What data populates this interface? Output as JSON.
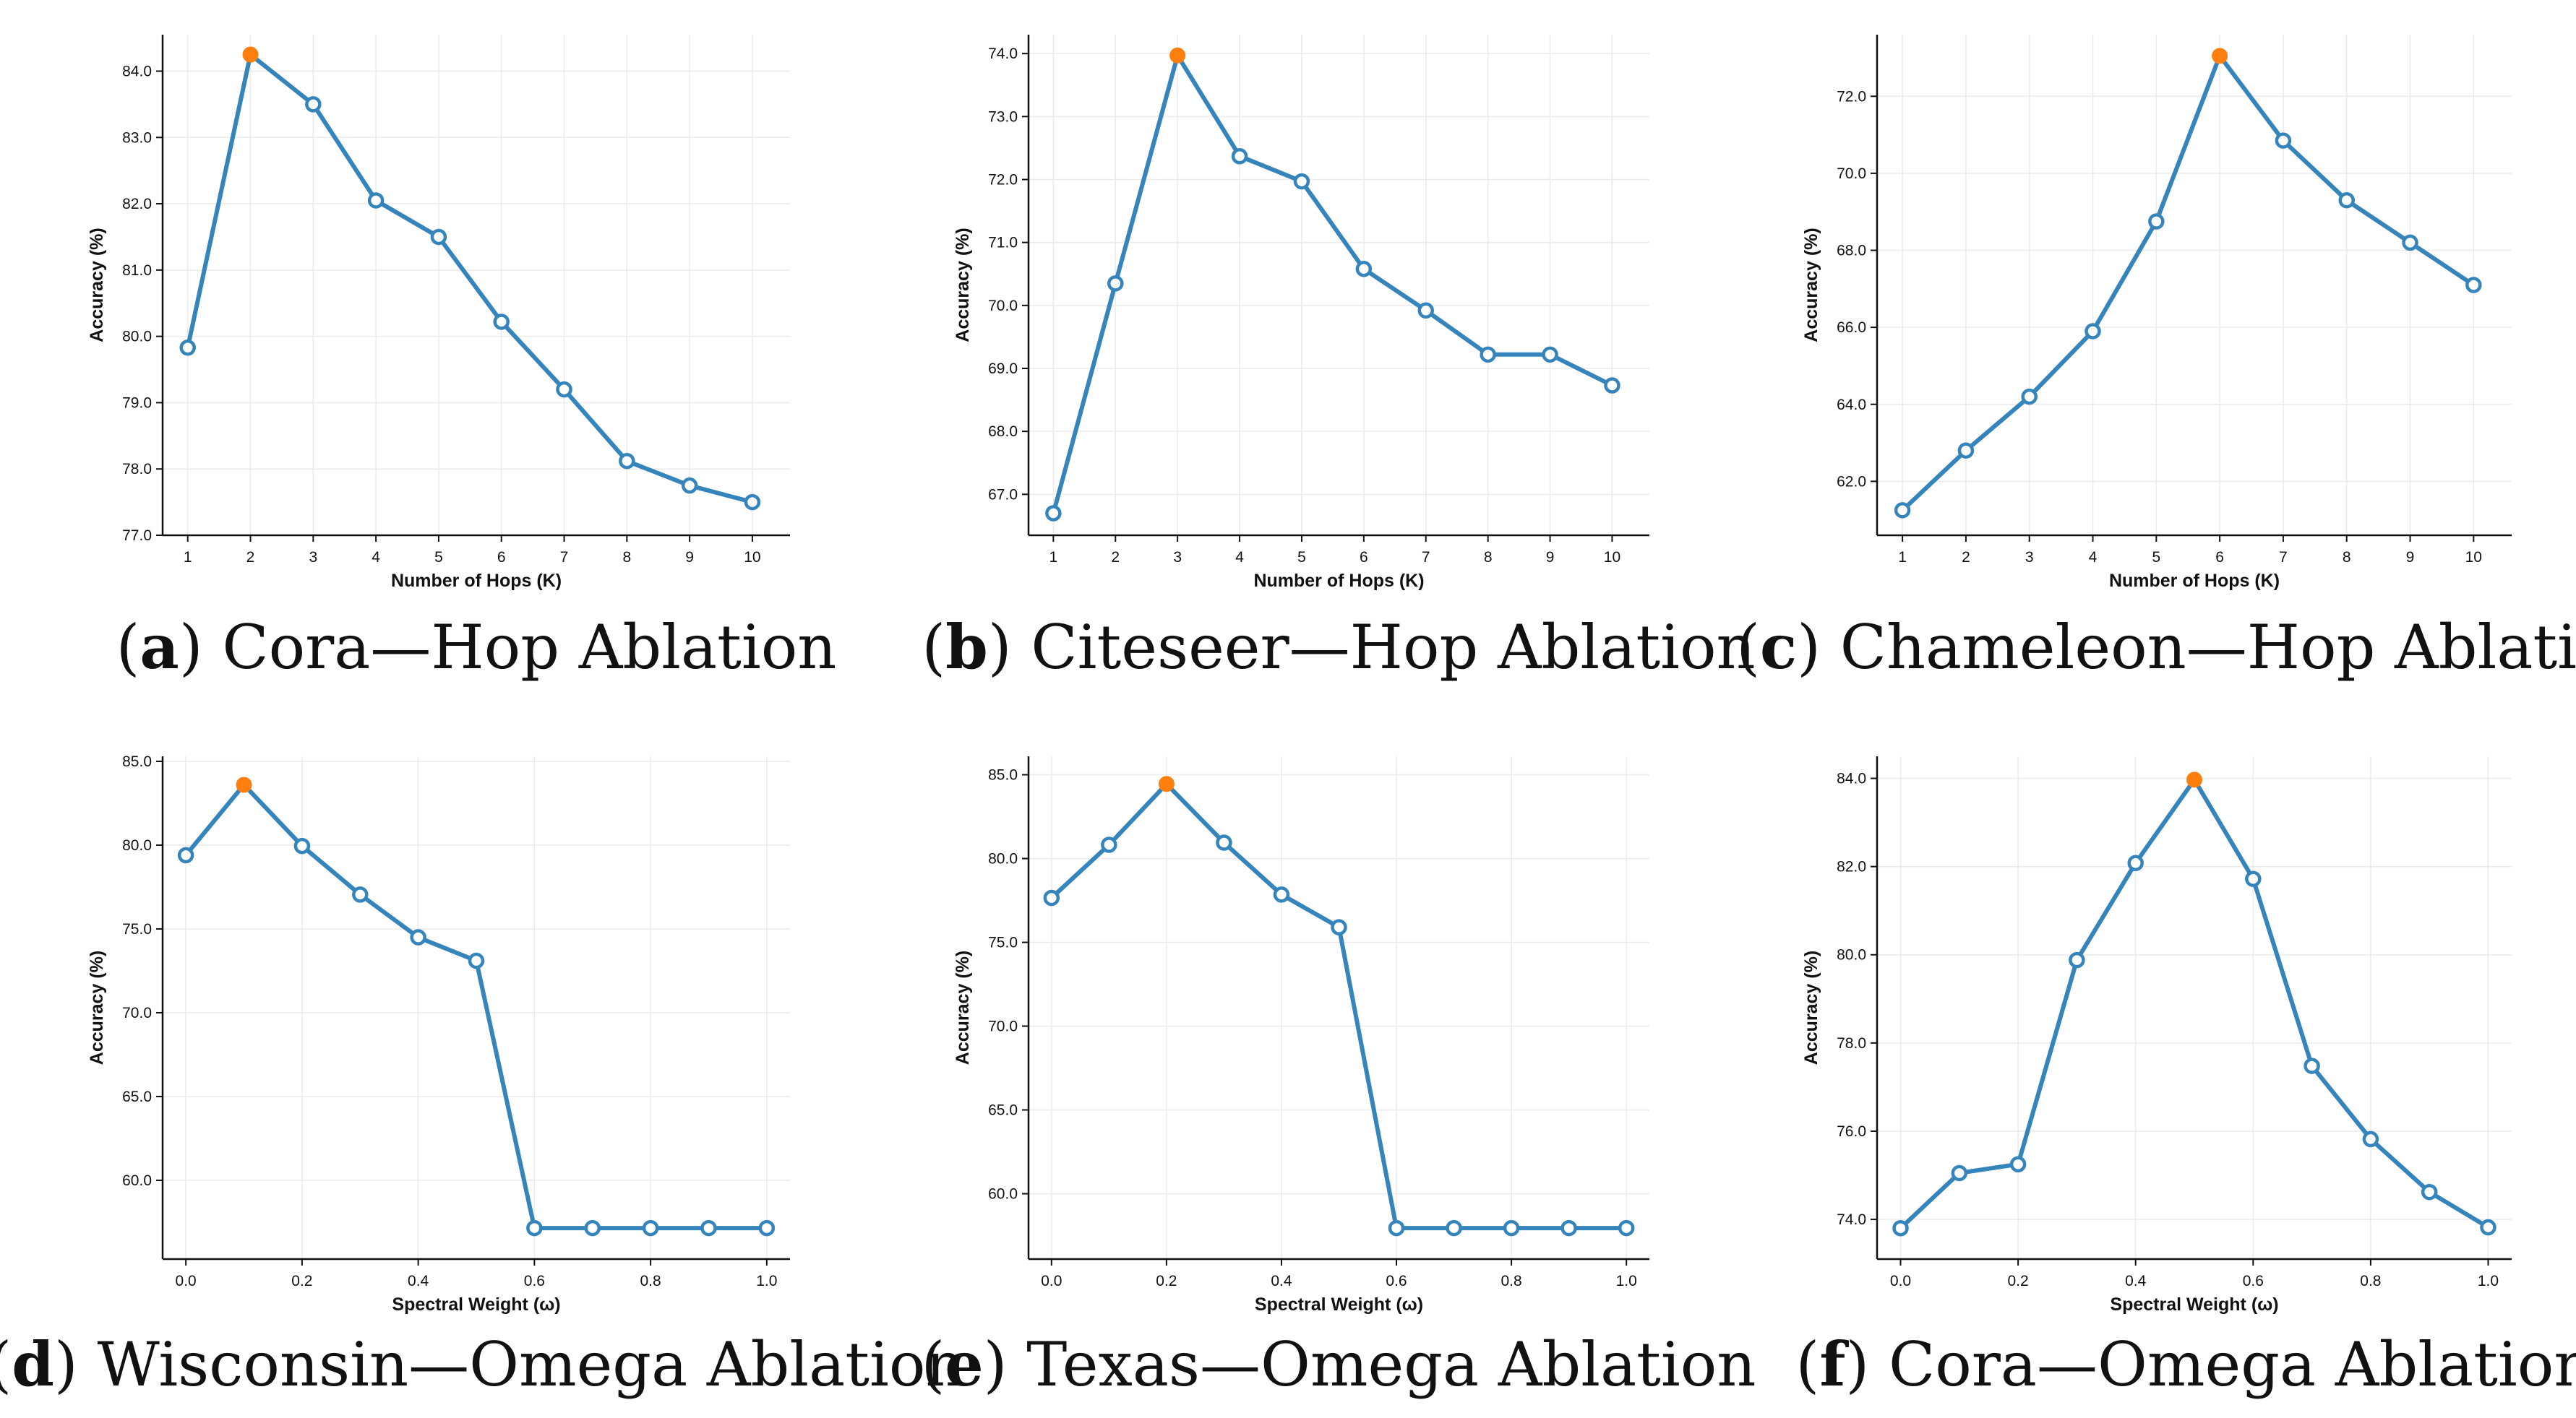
{
  "colors": {
    "line": "#3584bb",
    "marker_fill": "#ffffff",
    "highlight": "#ff7f0e"
  },
  "chart_data": [
    {
      "type": "line",
      "letter": "a",
      "caption": "Cora—Hop Ablation",
      "xlabel": "Number of Hops (K)",
      "ylabel": "Accuracy (%)",
      "x": [
        1,
        2,
        3,
        4,
        5,
        6,
        7,
        8,
        9,
        10
      ],
      "xticks": [
        1,
        2,
        3,
        4,
        5,
        6,
        7,
        8,
        9,
        10
      ],
      "xtick_labels": [
        "1",
        "2",
        "3",
        "4",
        "5",
        "6",
        "7",
        "8",
        "9",
        "10"
      ],
      "xlim": [
        0.6,
        10.6
      ],
      "yticks": [
        77,
        78,
        79,
        80,
        81,
        82,
        83,
        84
      ],
      "ytick_labels": [
        "77.0",
        "78.0",
        "79.0",
        "80.0",
        "81.0",
        "82.0",
        "83.0",
        "84.0"
      ],
      "ylim": [
        77.0,
        84.55
      ],
      "values": [
        79.83,
        84.25,
        83.5,
        82.05,
        81.5,
        80.22,
        79.2,
        78.12,
        77.75,
        77.5
      ],
      "best_index": 1,
      "grid": true
    },
    {
      "type": "line",
      "letter": "b",
      "caption": "Citeseer—Hop Ablation",
      "xlabel": "Number of Hops (K)",
      "ylabel": "Accuracy (%)",
      "x": [
        1,
        2,
        3,
        4,
        5,
        6,
        7,
        8,
        9,
        10
      ],
      "xticks": [
        1,
        2,
        3,
        4,
        5,
        6,
        7,
        8,
        9,
        10
      ],
      "xtick_labels": [
        "1",
        "2",
        "3",
        "4",
        "5",
        "6",
        "7",
        "8",
        "9",
        "10"
      ],
      "xlim": [
        0.6,
        10.6
      ],
      "yticks": [
        67,
        68,
        69,
        70,
        71,
        72,
        73,
        74
      ],
      "ytick_labels": [
        "67.0",
        "68.0",
        "69.0",
        "70.0",
        "71.0",
        "72.0",
        "73.0",
        "74.0"
      ],
      "ylim": [
        66.35,
        74.3
      ],
      "values": [
        66.7,
        70.35,
        73.97,
        72.37,
        71.97,
        70.58,
        69.92,
        69.22,
        69.22,
        68.73
      ],
      "best_index": 2,
      "grid": true
    },
    {
      "type": "line",
      "letter": "c",
      "caption": "Chameleon—Hop Ablation",
      "xlabel": "Number of Hops (K)",
      "ylabel": "Accuracy (%)",
      "x": [
        1,
        2,
        3,
        4,
        5,
        6,
        7,
        8,
        9,
        10
      ],
      "xticks": [
        1,
        2,
        3,
        4,
        5,
        6,
        7,
        8,
        9,
        10
      ],
      "xtick_labels": [
        "1",
        "2",
        "3",
        "4",
        "5",
        "6",
        "7",
        "8",
        "9",
        "10"
      ],
      "xlim": [
        0.6,
        10.6
      ],
      "yticks": [
        62,
        64,
        66,
        68,
        70,
        72
      ],
      "ytick_labels": [
        "62.0",
        "64.0",
        "66.0",
        "68.0",
        "70.0",
        "72.0"
      ],
      "ylim": [
        60.6,
        73.6
      ],
      "values": [
        61.25,
        62.8,
        64.2,
        65.9,
        68.75,
        73.05,
        70.85,
        69.3,
        68.2,
        67.1
      ],
      "best_index": 5,
      "grid": true
    },
    {
      "type": "line",
      "letter": "d",
      "caption": "Wisconsin—Omega Ablation",
      "xlabel": "Spectral Weight (ω)",
      "ylabel": "Accuracy (%)",
      "x": [
        0.0,
        0.1,
        0.2,
        0.3,
        0.4,
        0.5,
        0.6,
        0.7,
        0.8,
        0.9,
        1.0
      ],
      "xticks": [
        0.0,
        0.2,
        0.4,
        0.6,
        0.8,
        1.0
      ],
      "xtick_labels": [
        "0.0",
        "0.2",
        "0.4",
        "0.6",
        "0.8",
        "1.0"
      ],
      "xlim": [
        -0.04,
        1.04
      ],
      "yticks": [
        60,
        65,
        70,
        75,
        80,
        85
      ],
      "ytick_labels": [
        "60.0",
        "65.0",
        "70.0",
        "75.0",
        "80.0",
        "85.0"
      ],
      "ylim": [
        55.3,
        85.3
      ],
      "values": [
        79.4,
        83.6,
        79.95,
        77.05,
        74.5,
        73.1,
        57.15,
        57.15,
        57.15,
        57.15,
        57.15
      ],
      "best_index": 1,
      "grid": true
    },
    {
      "type": "line",
      "letter": "e",
      "caption": "Texas—Omega Ablation",
      "xlabel": "Spectral Weight (ω)",
      "ylabel": "Accuracy (%)",
      "x": [
        0.0,
        0.1,
        0.2,
        0.3,
        0.4,
        0.5,
        0.6,
        0.7,
        0.8,
        0.9,
        1.0
      ],
      "xticks": [
        0.0,
        0.2,
        0.4,
        0.6,
        0.8,
        1.0
      ],
      "xtick_labels": [
        "0.0",
        "0.2",
        "0.4",
        "0.6",
        "0.8",
        "1.0"
      ],
      "xlim": [
        -0.04,
        1.04
      ],
      "yticks": [
        60,
        65,
        70,
        75,
        80,
        85
      ],
      "ytick_labels": [
        "60.0",
        "65.0",
        "70.0",
        "75.0",
        "80.0",
        "85.0"
      ],
      "ylim": [
        56.1,
        86.1
      ],
      "values": [
        77.65,
        80.82,
        84.45,
        80.95,
        77.85,
        75.9,
        57.95,
        57.95,
        57.95,
        57.95,
        57.95
      ],
      "best_index": 2,
      "grid": true
    },
    {
      "type": "line",
      "letter": "f",
      "caption": "Cora—Omega Ablation",
      "xlabel": "Spectral Weight (ω)",
      "ylabel": "Accuracy (%)",
      "x": [
        0.0,
        0.1,
        0.2,
        0.3,
        0.4,
        0.5,
        0.6,
        0.7,
        0.8,
        0.9,
        1.0
      ],
      "xticks": [
        0.0,
        0.2,
        0.4,
        0.6,
        0.8,
        1.0
      ],
      "xtick_labels": [
        "0.0",
        "0.2",
        "0.4",
        "0.6",
        "0.8",
        "1.0"
      ],
      "xlim": [
        -0.04,
        1.04
      ],
      "yticks": [
        74,
        76,
        78,
        80,
        82,
        84
      ],
      "ytick_labels": [
        "74.0",
        "76.0",
        "78.0",
        "80.0",
        "82.0",
        "84.0"
      ],
      "ylim": [
        73.1,
        84.5
      ],
      "values": [
        73.8,
        75.05,
        75.25,
        79.88,
        82.08,
        83.97,
        81.72,
        77.48,
        75.82,
        74.62,
        73.82
      ],
      "best_index": 5,
      "grid": true
    }
  ]
}
